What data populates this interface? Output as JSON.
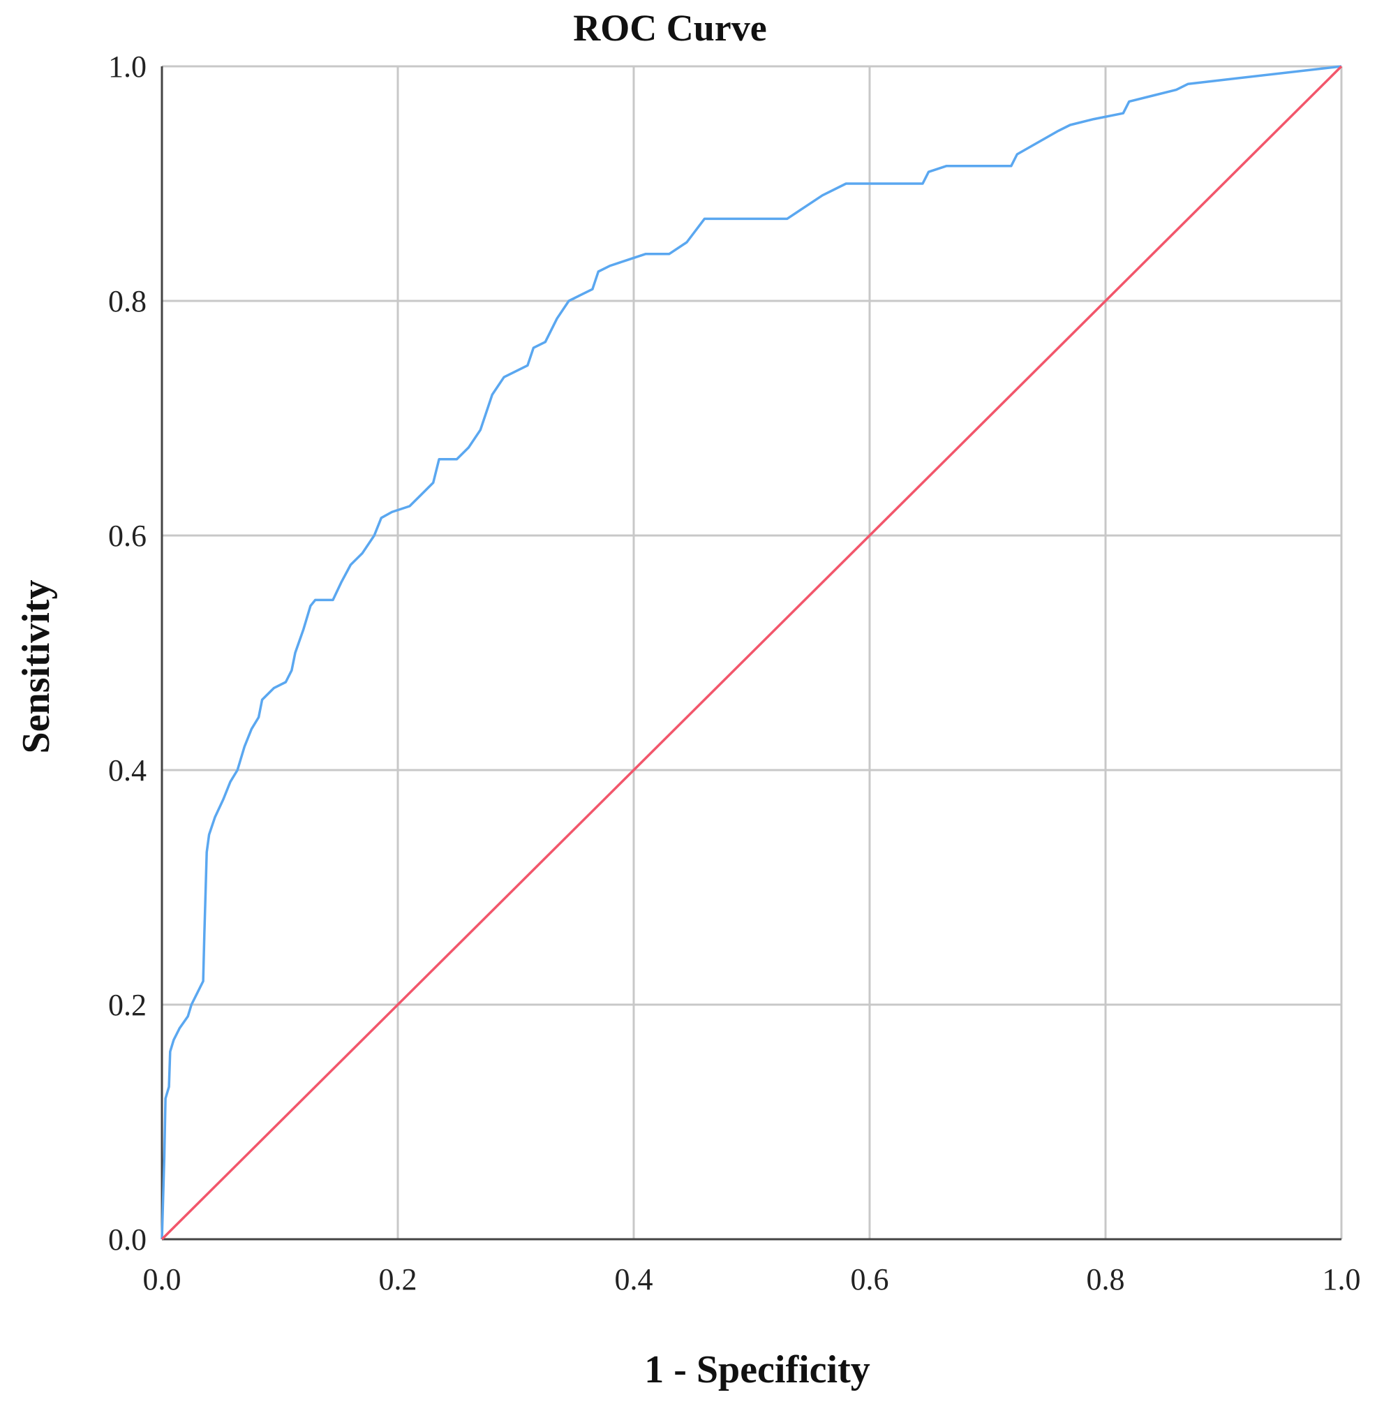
{
  "chart_data": {
    "type": "line",
    "title": "ROC Curve",
    "xlabel": "1 - Specificity",
    "ylabel": "Sensitivity",
    "xlim": [
      0,
      1
    ],
    "ylim": [
      0,
      1
    ],
    "x_ticks": [
      "0.0",
      "0.2",
      "0.4",
      "0.6",
      "0.8",
      "1.0"
    ],
    "y_ticks": [
      "0.0",
      "0.2",
      "0.4",
      "0.6",
      "0.8",
      "1.0"
    ],
    "grid": true,
    "legend": "none",
    "colors": {
      "roc": "#5aa7f0",
      "reference": "#f2566b",
      "grid": "#c8c8c8"
    },
    "series": [
      {
        "points": [
          [
            0,
            0
          ],
          [
            0.002,
            0.07
          ],
          [
            0.003,
            0.12
          ],
          [
            0.006,
            0.13
          ],
          [
            0.007,
            0.16
          ],
          [
            0.01,
            0.17
          ],
          [
            0.015,
            0.18
          ],
          [
            0.022,
            0.19
          ],
          [
            0.025,
            0.2
          ],
          [
            0.03,
            0.21
          ],
          [
            0.035,
            0.22
          ],
          [
            0.036,
            0.26
          ],
          [
            0.038,
            0.33
          ],
          [
            0.04,
            0.345
          ],
          [
            0.045,
            0.36
          ],
          [
            0.052,
            0.375
          ],
          [
            0.058,
            0.39
          ],
          [
            0.064,
            0.4
          ],
          [
            0.07,
            0.42
          ],
          [
            0.076,
            0.435
          ],
          [
            0.082,
            0.445
          ],
          [
            0.085,
            0.46
          ],
          [
            0.095,
            0.47
          ],
          [
            0.105,
            0.475
          ],
          [
            0.11,
            0.485
          ],
          [
            0.113,
            0.5
          ],
          [
            0.12,
            0.52
          ],
          [
            0.126,
            0.54
          ],
          [
            0.13,
            0.545
          ],
          [
            0.145,
            0.545
          ],
          [
            0.152,
            0.56
          ],
          [
            0.16,
            0.575
          ],
          [
            0.17,
            0.585
          ],
          [
            0.18,
            0.6
          ],
          [
            0.186,
            0.615
          ],
          [
            0.195,
            0.62
          ],
          [
            0.21,
            0.625
          ],
          [
            0.22,
            0.635
          ],
          [
            0.23,
            0.645
          ],
          [
            0.235,
            0.665
          ],
          [
            0.25,
            0.665
          ],
          [
            0.26,
            0.675
          ],
          [
            0.27,
            0.69
          ],
          [
            0.28,
            0.72
          ],
          [
            0.29,
            0.735
          ],
          [
            0.31,
            0.745
          ],
          [
            0.315,
            0.76
          ],
          [
            0.325,
            0.765
          ],
          [
            0.335,
            0.785
          ],
          [
            0.345,
            0.8
          ],
          [
            0.355,
            0.805
          ],
          [
            0.365,
            0.81
          ],
          [
            0.37,
            0.825
          ],
          [
            0.38,
            0.83
          ],
          [
            0.395,
            0.835
          ],
          [
            0.41,
            0.84
          ],
          [
            0.43,
            0.84
          ],
          [
            0.445,
            0.85
          ],
          [
            0.46,
            0.87
          ],
          [
            0.53,
            0.87
          ],
          [
            0.545,
            0.88
          ],
          [
            0.56,
            0.89
          ],
          [
            0.58,
            0.9
          ],
          [
            0.645,
            0.9
          ],
          [
            0.65,
            0.91
          ],
          [
            0.665,
            0.915
          ],
          [
            0.72,
            0.915
          ],
          [
            0.725,
            0.925
          ],
          [
            0.76,
            0.945
          ],
          [
            0.77,
            0.95
          ],
          [
            0.79,
            0.955
          ],
          [
            0.815,
            0.96
          ],
          [
            0.82,
            0.97
          ],
          [
            0.84,
            0.975
          ],
          [
            0.86,
            0.98
          ],
          [
            0.87,
            0.985
          ],
          [
            1.0,
            1.0
          ]
        ]
      },
      {
        "points": [
          [
            0,
            0
          ],
          [
            1,
            1
          ]
        ]
      }
    ]
  }
}
